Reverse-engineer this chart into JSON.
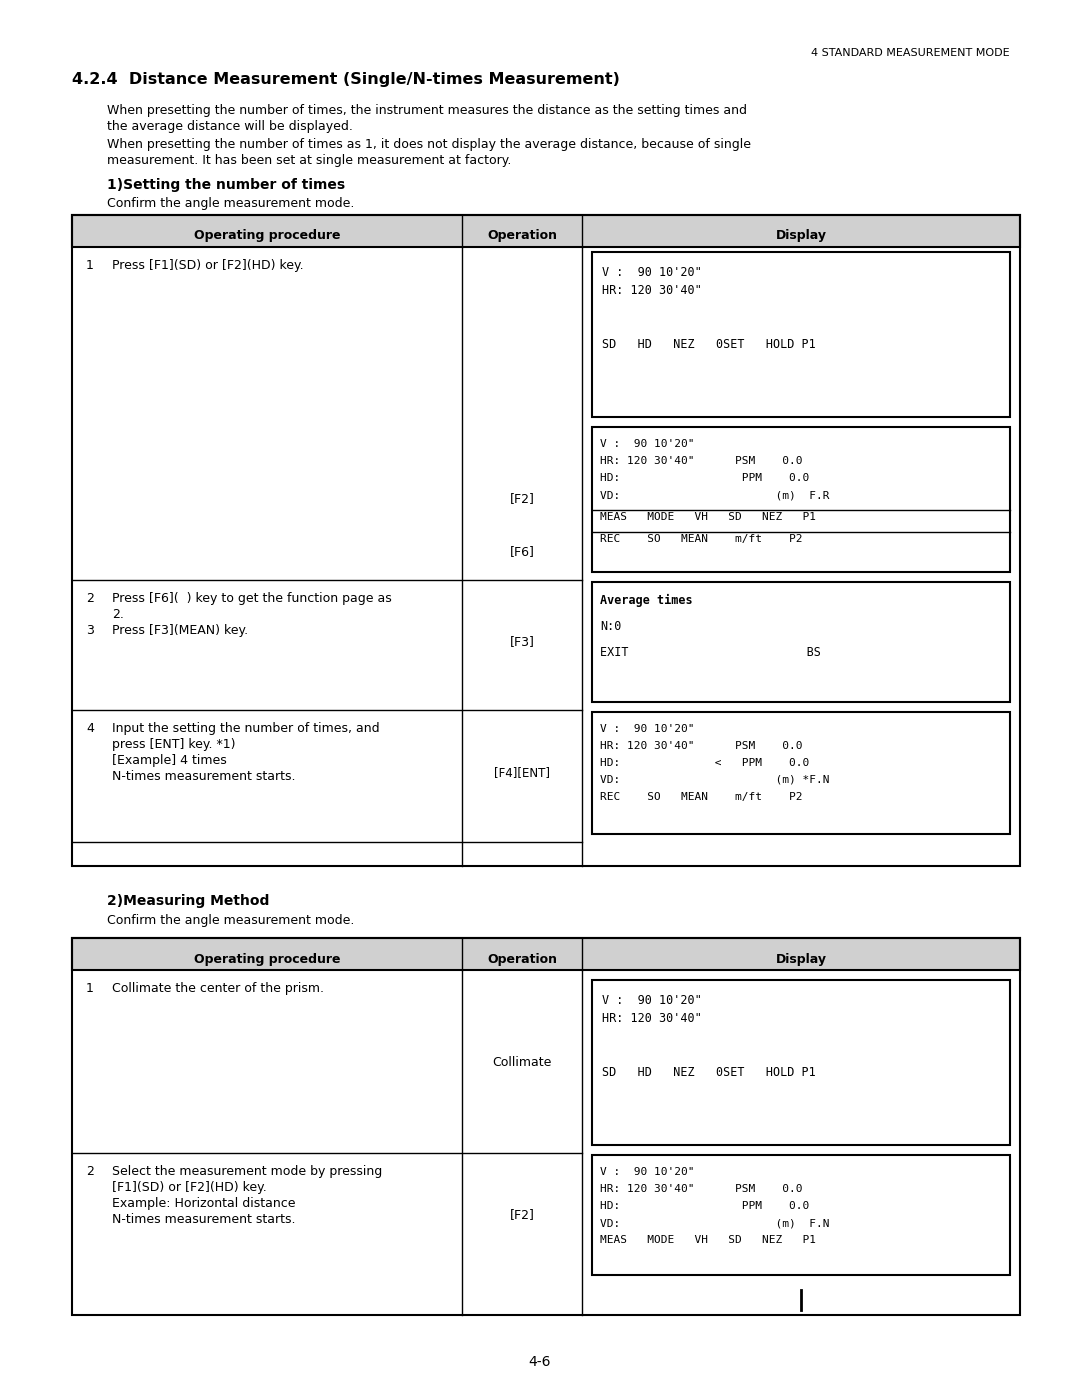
{
  "page_header": "4 STANDARD MEASUREMENT MODE",
  "section_title": "4.2.4  Distance Measurement (Single/N-times Measurement)",
  "intro_text1": "When presetting the number of times, the instrument measures the distance as the setting times and",
  "intro_text1b": "the average distance will be displayed.",
  "intro_text2": "When presetting the number of times as 1, it does not display the average distance, because of single",
  "intro_text2b": "measurement. It has been set at single measurement at factory.",
  "subsection1_title": "1)Setting the number of times",
  "subsection1_confirm": "Confirm the angle measurement mode.",
  "table1_headers": [
    "Operating procedure",
    "Operation",
    "Display"
  ],
  "subsection2_title": "2)Measuring Method",
  "subsection2_confirm": "Confirm the angle measurement mode.",
  "table2_headers": [
    "Operating procedure",
    "Operation",
    "Display"
  ],
  "page_number": "4-6",
  "bg_color": "#ffffff"
}
